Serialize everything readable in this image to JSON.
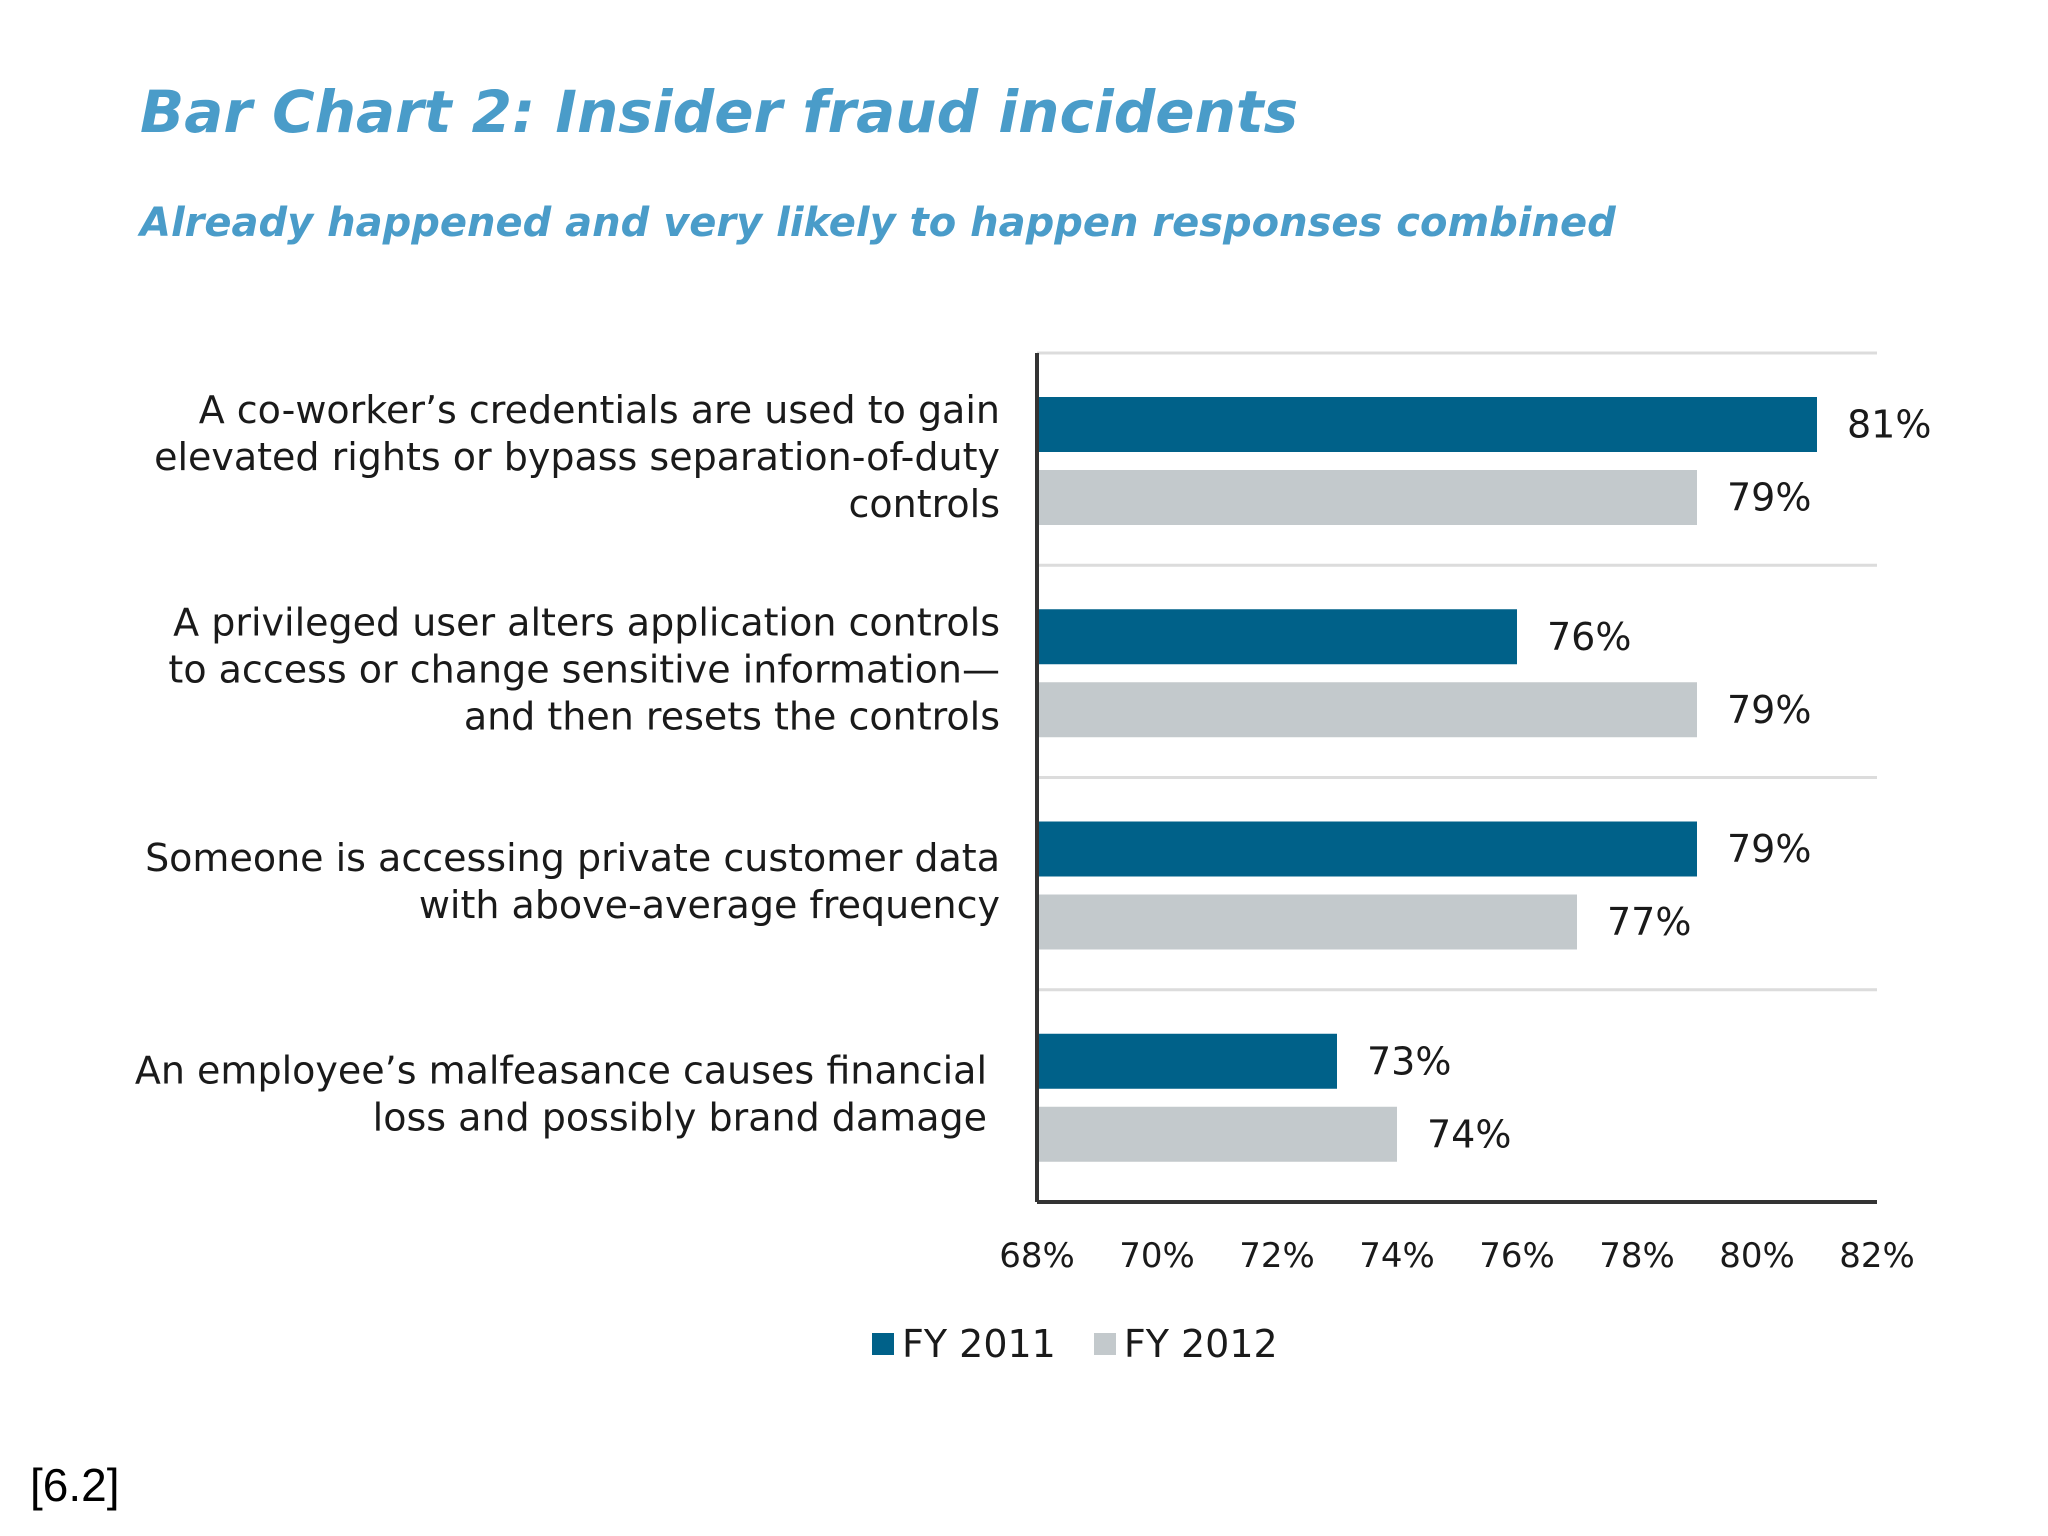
{
  "colors": {
    "title": "#4a9cc9",
    "fy2011": "#006189",
    "fy2012": "#c3c9cc",
    "axis": "#333333",
    "grid": "#dcdcdc"
  },
  "footnote": "[6.2]",
  "chart_data": {
    "type": "bar",
    "orientation": "horizontal",
    "title": "Bar Chart 2: Insider fraud incidents",
    "subtitle": "Already happened and very likely to happen responses combined",
    "categories": [
      [
        "A co-worker’s credentials are used to gain",
        "elevated rights or bypass separation-of-duty",
        "controls"
      ],
      [
        "A privileged user alters application controls",
        "to access or change sensitive information—",
        "and then resets the controls"
      ],
      [
        "Someone is accessing private customer data",
        "with above-average frequency"
      ],
      [
        "An employee’s malfeasance causes financial",
        "loss and possibly brand damage"
      ]
    ],
    "series": [
      {
        "name": "FY 2011",
        "values": [
          81,
          76,
          79,
          73
        ],
        "labels": [
          "81%",
          "76%",
          "79%",
          "73%"
        ]
      },
      {
        "name": "FY 2012",
        "values": [
          79,
          79,
          77,
          74
        ],
        "labels": [
          "79%",
          "79%",
          "77%",
          "74%"
        ]
      }
    ],
    "xlim": [
      68,
      82
    ],
    "xticks": [
      68,
      70,
      72,
      74,
      76,
      78,
      80,
      82
    ],
    "xtick_labels": [
      "68%",
      "70%",
      "72%",
      "74%",
      "76%",
      "78%",
      "80%",
      "82%"
    ],
    "grid": true,
    "legend_position": "bottom"
  }
}
